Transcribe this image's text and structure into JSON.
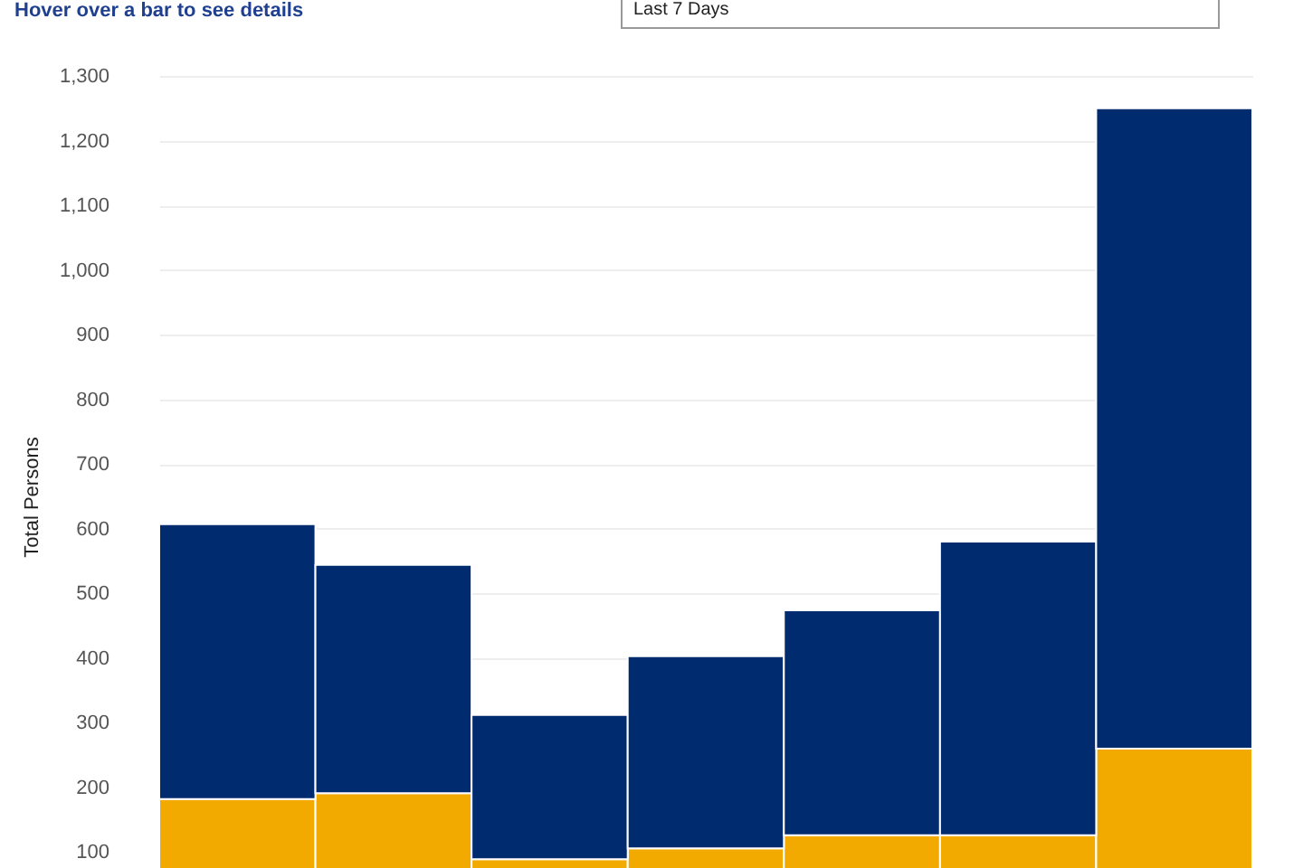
{
  "chart_data": {
    "type": "bar",
    "title": "Hover over a bar to see details",
    "ylabel": "Total Persons",
    "annotations": [
      "Last 7 Days"
    ],
    "categories": [
      null,
      null,
      null,
      null,
      null,
      null,
      null
    ],
    "stacked": true,
    "series": [
      {
        "color": "#f2a900",
        "values": [
          182,
          191,
          89,
          106,
          126,
          126,
          260
        ]
      },
      {
        "color": "#002b6f",
        "values": [
          425,
          353,
          223,
          297,
          348,
          454,
          990
        ]
      }
    ],
    "ylim": [
      0,
      1300
    ],
    "yticks": [
      100,
      200,
      300,
      400,
      500,
      600,
      700,
      800,
      900,
      {
        "value": 1000,
        "label": "1,000"
      },
      {
        "value": 1100,
        "label": "1,100"
      },
      {
        "value": 1200,
        "label": "1,200"
      },
      {
        "value": 1300,
        "label": "1,300"
      }
    ],
    "grid": "y",
    "legend": false
  }
}
